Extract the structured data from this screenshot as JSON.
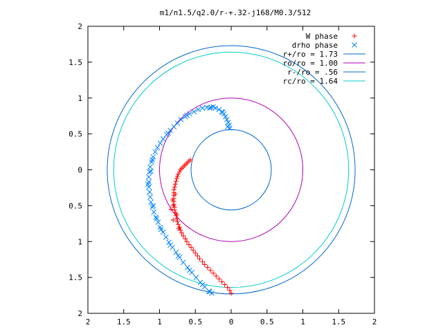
{
  "chart_data": {
    "type": "scatter",
    "title": "m1/n1.5/q2.0/r-+.32-j168/M0.3/512",
    "xlabel": "",
    "ylabel": "",
    "xlim": [
      2,
      -2
    ],
    "ylim": [
      2,
      -2
    ],
    "x_ticks": [
      "2",
      "1.5",
      "1",
      "0.5",
      "0",
      "0.5",
      "1",
      "1.5",
      "2"
    ],
    "y_ticks": [
      "2",
      "1.5",
      "1",
      "0.5",
      "0",
      "0.5",
      "1",
      "1.5",
      "2"
    ],
    "x_tick_values": [
      2,
      1.5,
      1,
      0.5,
      0,
      -0.5,
      -1,
      -1.5,
      -2
    ],
    "y_tick_values": [
      2,
      1.5,
      1,
      0.5,
      0,
      -0.5,
      -1,
      -1.5,
      -2
    ],
    "grid": false,
    "legend_position": "top-right",
    "series": [
      {
        "name": "W phase",
        "kind": "points",
        "marker": "plus",
        "color": "#ff0000",
        "points": [
          [
            0.57,
            0.14
          ],
          [
            0.59,
            0.12
          ],
          [
            0.61,
            0.1
          ],
          [
            0.63,
            0.08
          ],
          [
            0.65,
            0.06
          ],
          [
            0.67,
            0.04
          ],
          [
            0.69,
            0.02
          ],
          [
            0.71,
            0.0
          ],
          [
            0.72,
            -0.03
          ],
          [
            0.74,
            -0.06
          ],
          [
            0.75,
            -0.09
          ],
          [
            0.76,
            -0.12
          ],
          [
            0.77,
            -0.16
          ],
          [
            0.78,
            -0.2
          ],
          [
            0.79,
            -0.24
          ],
          [
            0.8,
            -0.28
          ],
          [
            0.8,
            -0.32
          ],
          [
            0.8,
            -0.36
          ],
          [
            0.8,
            -0.4
          ],
          [
            0.8,
            -0.44
          ],
          [
            0.8,
            -0.48
          ],
          [
            0.79,
            -0.52
          ],
          [
            0.79,
            -0.56
          ],
          [
            0.78,
            -0.6
          ],
          [
            0.77,
            -0.64
          ],
          [
            0.76,
            -0.68
          ],
          [
            0.75,
            -0.72
          ],
          [
            0.74,
            -0.76
          ],
          [
            0.72,
            -0.8
          ],
          [
            0.71,
            -0.84
          ],
          [
            0.69,
            -0.88
          ],
          [
            0.67,
            -0.92
          ],
          [
            0.64,
            -0.96
          ],
          [
            0.62,
            -1.0
          ],
          [
            0.59,
            -1.04
          ],
          [
            0.56,
            -1.08
          ],
          [
            0.53,
            -1.12
          ],
          [
            0.5,
            -1.16
          ],
          [
            0.47,
            -1.2
          ],
          [
            0.44,
            -1.24
          ],
          [
            0.4,
            -1.28
          ],
          [
            0.37,
            -1.32
          ],
          [
            0.33,
            -1.36
          ],
          [
            0.29,
            -1.4
          ],
          [
            0.25,
            -1.44
          ],
          [
            0.21,
            -1.48
          ],
          [
            0.17,
            -1.52
          ],
          [
            0.13,
            -1.56
          ],
          [
            0.09,
            -1.6
          ],
          [
            0.05,
            -1.64
          ],
          [
            0.02,
            -1.68
          ],
          [
            0.0,
            -1.72
          ],
          [
            0.78,
            -0.34
          ],
          [
            0.82,
            -0.42
          ],
          [
            0.81,
            -0.5
          ],
          [
            0.84,
            -0.55
          ],
          [
            0.76,
            -0.62
          ],
          [
            0.81,
            -0.7
          ],
          [
            0.73,
            -0.82
          ]
        ]
      },
      {
        "name": "drho phase",
        "kind": "points",
        "marker": "cross",
        "color": "#0080ff",
        "points": [
          [
            0.02,
            0.58
          ],
          [
            0.03,
            0.62
          ],
          [
            0.04,
            0.66
          ],
          [
            0.06,
            0.7
          ],
          [
            0.08,
            0.74
          ],
          [
            0.1,
            0.78
          ],
          [
            0.13,
            0.81
          ],
          [
            0.17,
            0.84
          ],
          [
            0.22,
            0.86
          ],
          [
            0.28,
            0.87
          ],
          [
            0.34,
            0.87
          ],
          [
            0.4,
            0.86
          ],
          [
            0.46,
            0.84
          ],
          [
            0.52,
            0.81
          ],
          [
            0.58,
            0.78
          ],
          [
            0.64,
            0.74
          ],
          [
            0.7,
            0.7
          ],
          [
            0.75,
            0.65
          ],
          [
            0.8,
            0.6
          ],
          [
            0.85,
            0.55
          ],
          [
            0.9,
            0.49
          ],
          [
            0.95,
            0.43
          ],
          [
            0.99,
            0.37
          ],
          [
            1.03,
            0.31
          ],
          [
            1.06,
            0.25
          ],
          [
            1.09,
            0.18
          ],
          [
            1.11,
            0.11
          ],
          [
            1.13,
            0.04
          ],
          [
            1.14,
            -0.03
          ],
          [
            1.15,
            -0.1
          ],
          [
            1.15,
            -0.17
          ],
          [
            1.15,
            -0.24
          ],
          [
            1.14,
            -0.31
          ],
          [
            1.13,
            -0.38
          ],
          [
            1.12,
            -0.45
          ],
          [
            1.1,
            -0.52
          ],
          [
            1.08,
            -0.59
          ],
          [
            1.05,
            -0.66
          ],
          [
            1.02,
            -0.73
          ],
          [
            0.99,
            -0.8
          ],
          [
            0.95,
            -0.87
          ],
          [
            0.91,
            -0.94
          ],
          [
            0.87,
            -1.01
          ],
          [
            0.82,
            -1.08
          ],
          [
            0.77,
            -1.15
          ],
          [
            0.72,
            -1.22
          ],
          [
            0.67,
            -1.29
          ],
          [
            0.61,
            -1.36
          ],
          [
            0.55,
            -1.43
          ],
          [
            0.49,
            -1.5
          ],
          [
            0.43,
            -1.57
          ],
          [
            0.37,
            -1.63
          ],
          [
            0.31,
            -1.69
          ],
          [
            0.27,
            -1.72
          ],
          [
            0.05,
            0.6
          ],
          [
            0.12,
            0.8
          ],
          [
            0.25,
            0.88
          ],
          [
            0.3,
            0.86
          ],
          [
            0.62,
            0.76
          ],
          [
            0.88,
            0.51
          ],
          [
            1.1,
            0.14
          ],
          [
            1.12,
            -0.02
          ],
          [
            1.16,
            -0.2
          ],
          [
            1.09,
            -0.5
          ],
          [
            1.04,
            -0.68
          ],
          [
            0.98,
            -0.83
          ],
          [
            0.85,
            -1.05
          ],
          [
            0.74,
            -1.2
          ],
          [
            0.58,
            -1.4
          ],
          [
            0.4,
            -1.6
          ],
          [
            0.3,
            -1.7
          ]
        ]
      },
      {
        "name": "r+/ro = 1.73",
        "kind": "circle",
        "radius": 1.73,
        "color": "#0066cc"
      },
      {
        "name": "ro/ro = 1.00",
        "kind": "circle",
        "radius": 1.0,
        "color": "#b000b0"
      },
      {
        "name": "r-/ro = .56",
        "kind": "circle",
        "radius": 0.56,
        "color": "#0066cc"
      },
      {
        "name": "rc/ro = 1.64",
        "kind": "circle",
        "radius": 1.64,
        "color": "#00cccc"
      }
    ]
  }
}
